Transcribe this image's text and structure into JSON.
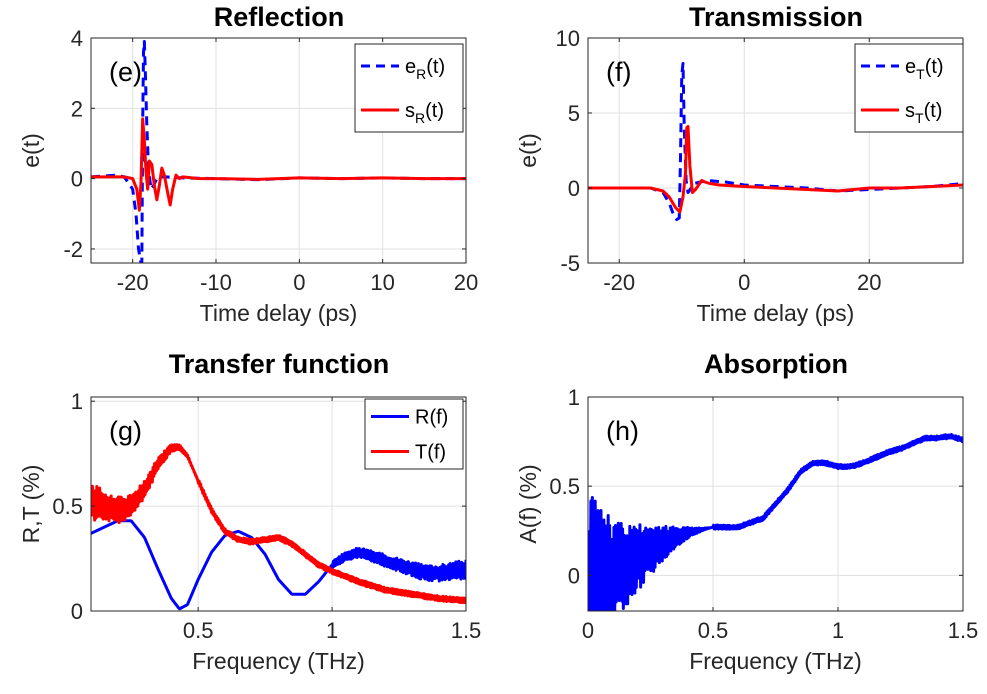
{
  "chart_data": [
    {
      "type": "line",
      "title": "Reflection",
      "panel_label": "(e)",
      "xlabel": "Time delay (ps)",
      "ylabel": "e(t)",
      "xlim": [
        -25,
        20
      ],
      "ylim": [
        -2.4,
        4
      ],
      "xticks": [
        -20,
        -10,
        0,
        10,
        20
      ],
      "yticks": [
        -2,
        0,
        2,
        4
      ],
      "grid": true,
      "legend_position": "top-right",
      "series": [
        {
          "name": "eR(t)",
          "legend_main": "e",
          "legend_sub": "R",
          "legend_tail": "(t)",
          "style": "dashed",
          "color": "#0000ff",
          "x": [
            -25,
            -22,
            -21,
            -20,
            -19.6,
            -19.3,
            -19.0,
            -18.9,
            -18.8,
            -18.7,
            -18.6,
            -18.5,
            -18.3,
            -18.1,
            -17.8,
            -17.5,
            -17.0,
            -16,
            -14,
            -10,
            -5,
            0,
            5,
            10,
            15,
            20
          ],
          "y": [
            0.05,
            0.1,
            0.05,
            -0.3,
            -1.0,
            -2.0,
            -2.4,
            -2.4,
            1.5,
            3.6,
            3.9,
            3.2,
            1.5,
            0.3,
            -0.3,
            -0.2,
            0.05,
            0.05,
            0.02,
            0.0,
            -0.03,
            0.02,
            0.0,
            0.02,
            0.0,
            0.0
          ]
        },
        {
          "name": "sR(t)",
          "legend_main": "s",
          "legend_sub": "R",
          "legend_tail": "(t)",
          "style": "solid",
          "color": "#ff0000",
          "x": [
            -25,
            -21,
            -20,
            -19.5,
            -19.2,
            -19.0,
            -18.8,
            -18.6,
            -18.4,
            -18.2,
            -18.0,
            -17.7,
            -17.4,
            -17.1,
            -16.8,
            -16.5,
            -16.2,
            -15.8,
            -15.5,
            -15.2,
            -14.8,
            -14.4,
            -14.0,
            -12,
            -10,
            -5,
            0,
            5,
            10,
            15,
            20
          ],
          "y": [
            0.05,
            0.05,
            0.0,
            -0.3,
            -0.9,
            -0.1,
            1.7,
            1.1,
            0.2,
            -0.3,
            0.5,
            0.4,
            -0.2,
            -0.6,
            -0.2,
            0.3,
            0.1,
            -0.4,
            -0.75,
            -0.3,
            0.1,
            0.0,
            0.05,
            0.0,
            0.0,
            -0.02,
            0.02,
            0.0,
            0.02,
            0.0,
            0.0
          ]
        }
      ]
    },
    {
      "type": "line",
      "title": "Transmission",
      "panel_label": "(f)",
      "xlabel": "Time delay (ps)",
      "ylabel": "e(t)",
      "xlim": [
        -25,
        35
      ],
      "ylim": [
        -5,
        10
      ],
      "xticks": [
        -20,
        0,
        20
      ],
      "yticks": [
        -5,
        0,
        5,
        10
      ],
      "grid": true,
      "legend_position": "top-right",
      "series": [
        {
          "name": "eT(t)",
          "legend_main": "e",
          "legend_sub": "T",
          "legend_tail": "(t)",
          "style": "dashed",
          "color": "#0000ff",
          "x": [
            -25,
            -15,
            -13,
            -12,
            -11.3,
            -10.8,
            -10.4,
            -10.2,
            -10.0,
            -9.8,
            -9.6,
            -9.3,
            -9.0,
            -8.5,
            -8,
            -6,
            -3,
            0,
            5,
            10,
            15,
            20,
            25,
            30,
            35
          ],
          "y": [
            0.0,
            0.0,
            -0.3,
            -1.0,
            -1.8,
            -2.1,
            -2.0,
            2.0,
            7.5,
            8.3,
            4.0,
            0.5,
            -0.3,
            0.0,
            0.3,
            0.5,
            0.4,
            0.2,
            0.1,
            0.0,
            -0.2,
            -0.1,
            0.0,
            0.1,
            0.3
          ]
        },
        {
          "name": "sT(t)",
          "legend_main": "s",
          "legend_sub": "T",
          "legend_tail": "(t)",
          "style": "solid",
          "color": "#ff0000",
          "x": [
            -25,
            -15,
            -13,
            -12,
            -11,
            -10.3,
            -9.8,
            -9.4,
            -9.2,
            -9.0,
            -8.7,
            -8.3,
            -7.8,
            -7.3,
            -6.8,
            -6.3,
            -5.5,
            -4,
            0,
            5,
            10,
            15,
            20,
            25,
            30,
            35
          ],
          "y": [
            0.0,
            0.0,
            -0.2,
            -0.6,
            -1.3,
            -1.6,
            -0.6,
            1.0,
            4.0,
            4.1,
            1.5,
            -0.3,
            -0.1,
            0.2,
            0.5,
            0.4,
            0.3,
            0.2,
            0.1,
            0.0,
            -0.1,
            -0.2,
            0.0,
            0.0,
            0.1,
            0.2
          ]
        }
      ]
    },
    {
      "type": "line",
      "title": "Transfer function",
      "panel_label": "(g)",
      "xlabel": "Frequency (THz)",
      "ylabel": "R,T (%)",
      "xlim": [
        0.1,
        1.5
      ],
      "ylim": [
        0,
        1.02
      ],
      "xticks": [
        0.5,
        1,
        1.5
      ],
      "xtick_labels": [
        "0.5",
        "1",
        "1.5"
      ],
      "yticks": [
        0,
        0.5,
        1
      ],
      "ytick_labels": [
        "0",
        "0.5",
        "1"
      ],
      "grid": true,
      "legend_position": "top-right",
      "series": [
        {
          "name": "R(f)",
          "style": "solid",
          "color": "#0000ff",
          "x": [
            0.1,
            0.15,
            0.2,
            0.25,
            0.3,
            0.35,
            0.4,
            0.43,
            0.46,
            0.5,
            0.55,
            0.6,
            0.65,
            0.7,
            0.75,
            0.8,
            0.85,
            0.9,
            0.95,
            1.0,
            1.05,
            1.1,
            1.15,
            1.2,
            1.25,
            1.3,
            1.35,
            1.4,
            1.45,
            1.5
          ],
          "y": [
            0.37,
            0.4,
            0.43,
            0.43,
            0.35,
            0.2,
            0.06,
            0.01,
            0.03,
            0.15,
            0.28,
            0.36,
            0.38,
            0.35,
            0.27,
            0.15,
            0.08,
            0.08,
            0.14,
            0.22,
            0.26,
            0.28,
            0.26,
            0.24,
            0.22,
            0.2,
            0.18,
            0.18,
            0.19,
            0.2
          ],
          "noise_from": 1.0,
          "noise_amp": 0.045
        },
        {
          "name": "T(f)",
          "style": "solid",
          "color": "#ff0000",
          "x": [
            0.1,
            0.15,
            0.2,
            0.25,
            0.3,
            0.35,
            0.4,
            0.43,
            0.46,
            0.5,
            0.55,
            0.6,
            0.65,
            0.7,
            0.75,
            0.8,
            0.85,
            0.9,
            0.95,
            1.0,
            1.1,
            1.2,
            1.3,
            1.4,
            1.5
          ],
          "y": [
            0.52,
            0.5,
            0.48,
            0.5,
            0.58,
            0.7,
            0.78,
            0.78,
            0.74,
            0.62,
            0.48,
            0.38,
            0.34,
            0.33,
            0.34,
            0.35,
            0.32,
            0.27,
            0.22,
            0.19,
            0.14,
            0.1,
            0.08,
            0.06,
            0.05
          ],
          "noise_to": 0.5,
          "noise_amp": 0.09
        }
      ]
    },
    {
      "type": "line",
      "title": "Absorption",
      "panel_label": "(h)",
      "xlabel": "Frequency (THz)",
      "ylabel": "A(f) (%)",
      "xlim": [
        0,
        1.5
      ],
      "ylim": [
        -0.2,
        1
      ],
      "xticks": [
        0,
        0.5,
        1,
        1.5
      ],
      "xtick_labels": [
        "0",
        "0.5",
        "1",
        "1.5"
      ],
      "yticks": [
        0,
        0.5,
        1
      ],
      "ytick_labels": [
        "0",
        "0.5",
        "1"
      ],
      "grid": true,
      "series": [
        {
          "name": "A(f)",
          "style": "solid",
          "color": "#0000ff",
          "x": [
            0.0,
            0.02,
            0.05,
            0.08,
            0.1,
            0.15,
            0.2,
            0.3,
            0.4,
            0.5,
            0.55,
            0.6,
            0.7,
            0.8,
            0.85,
            0.9,
            0.95,
            1.0,
            1.05,
            1.1,
            1.15,
            1.2,
            1.25,
            1.3,
            1.35,
            1.4,
            1.45,
            1.5
          ],
          "y": [
            0.0,
            0.05,
            0.03,
            0.02,
            0.02,
            0.05,
            0.1,
            0.18,
            0.24,
            0.27,
            0.27,
            0.27,
            0.32,
            0.48,
            0.58,
            0.63,
            0.63,
            0.61,
            0.61,
            0.63,
            0.66,
            0.69,
            0.71,
            0.74,
            0.77,
            0.77,
            0.78,
            0.76
          ],
          "noise_to": 0.5,
          "noise_amp": 0.42,
          "noise_decay": true
        }
      ]
    }
  ]
}
